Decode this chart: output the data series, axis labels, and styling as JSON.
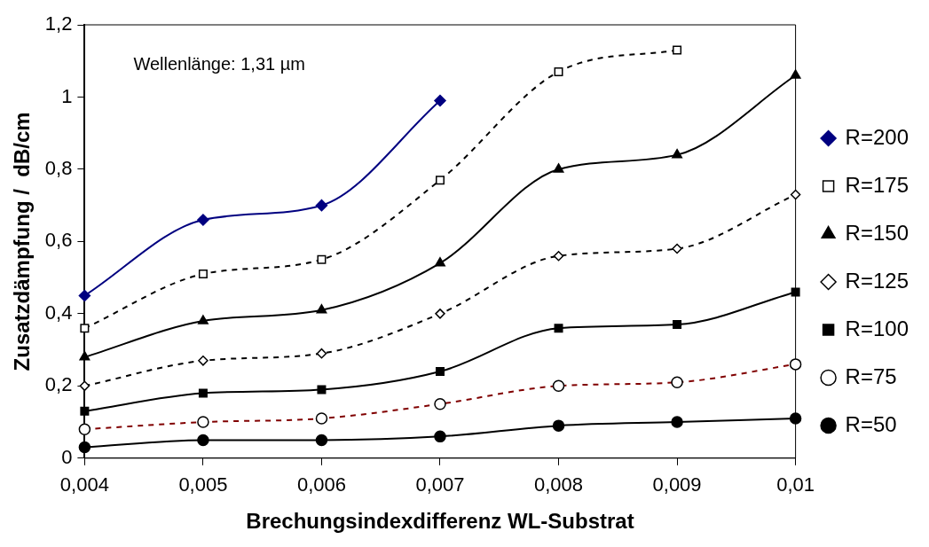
{
  "chart_data": {
    "type": "line",
    "xlabel": "Brechungsindexdifferenz WL-Substrat",
    "ylabel": "Zusatzdämpfung /  dB/cm",
    "annotations": [
      "Wellenlänge: 1,31 µm"
    ],
    "x": [
      0.004,
      0.005,
      0.006,
      0.007,
      0.008,
      0.009,
      0.01
    ],
    "xlim": [
      0.004,
      0.01
    ],
    "xticks": [
      {
        "value": 0.004,
        "label": "0,004"
      },
      {
        "value": 0.005,
        "label": "0,005"
      },
      {
        "value": 0.006,
        "label": "0,006"
      },
      {
        "value": 0.007,
        "label": "0,007"
      },
      {
        "value": 0.008,
        "label": "0,008"
      },
      {
        "value": 0.009,
        "label": "0,009"
      },
      {
        "value": 0.01,
        "label": "0,01"
      }
    ],
    "ylim": [
      0,
      1.2
    ],
    "yticks": [
      0,
      {
        "value": 0.2,
        "label": "0,2"
      },
      {
        "value": 0.4,
        "label": "0,4"
      },
      {
        "value": 0.6,
        "label": "0,6"
      },
      {
        "value": 0.8,
        "label": "0,8"
      },
      1,
      {
        "value": 1.2,
        "label": "1,2"
      }
    ],
    "legend": "right",
    "series": [
      {
        "name": "R=200",
        "color": "#000080",
        "marker": "diamond",
        "line_style": "solid",
        "values": [
          0.45,
          0.66,
          0.7,
          0.99,
          null,
          null,
          null
        ]
      },
      {
        "name": "R=175",
        "color": "#000000",
        "marker": "square",
        "line_style": "dashed",
        "values": [
          0.36,
          0.51,
          0.55,
          0.77,
          1.07,
          1.13,
          null
        ]
      },
      {
        "name": "R=150",
        "color": "#000000",
        "marker": "triangle",
        "line_style": "solid",
        "values": [
          0.28,
          0.38,
          0.41,
          0.54,
          0.8,
          0.84,
          1.06
        ]
      },
      {
        "name": "R=125",
        "color": "#000000",
        "marker": "diamond",
        "line_style": "dashed",
        "values": [
          0.2,
          0.27,
          0.29,
          0.4,
          0.56,
          0.58,
          0.73
        ]
      },
      {
        "name": "R=100",
        "color": "#000000",
        "marker": "square",
        "line_style": "solid",
        "values": [
          0.13,
          0.18,
          0.19,
          0.24,
          0.36,
          0.37,
          0.46
        ]
      },
      {
        "name": "R=75",
        "color": "#800000",
        "marker": "circle",
        "line_style": "dashed",
        "values": [
          0.08,
          0.1,
          0.11,
          0.15,
          0.2,
          0.21,
          0.26
        ]
      },
      {
        "name": "R=50",
        "color": "#000000",
        "marker": "circle",
        "line_style": "solid",
        "values": [
          0.03,
          0.05,
          0.05,
          0.06,
          0.09,
          0.1,
          0.11
        ]
      }
    ]
  }
}
